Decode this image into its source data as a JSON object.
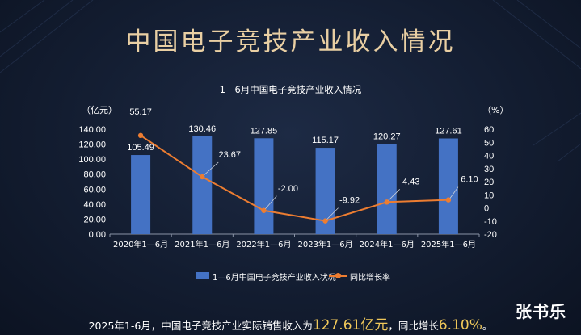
{
  "page": {
    "title": "中国电子竞技产业收入情况",
    "watermark": "张书乐"
  },
  "footer": {
    "prefix": "2025年1-6月，中国电子竞技产业实际销售收入为",
    "revenue": "127.61亿元",
    "middle": "，同比增长",
    "growth": "6.10%",
    "suffix": "。"
  },
  "chart_data": {
    "type": "bar",
    "title": "1—6月中国电子竞技产业收入情况",
    "y_left_label": "（亿元）",
    "y_right_label": "（%）",
    "categories": [
      "2020年1—6月",
      "2021年1—6月",
      "2022年1—6月",
      "2023年1—6月",
      "2024年1—6月",
      "2025年1—6月"
    ],
    "series": [
      {
        "name": "1—6月中国电子竞技产业收入状况",
        "type": "bar",
        "axis": "left",
        "color": "#4472c4",
        "values": [
          105.49,
          130.46,
          127.85,
          115.17,
          120.27,
          127.61
        ],
        "labels": [
          "105.49",
          "130.46",
          "127.85",
          "115.17",
          "120.27",
          "127.61"
        ]
      },
      {
        "name": "同比增长率",
        "type": "line",
        "axis": "right",
        "color": "#ed7d31",
        "values": [
          55.17,
          23.67,
          -2.0,
          -9.92,
          4.43,
          6.1
        ],
        "labels": [
          "55.17",
          "23.67",
          "-2.00",
          "-9.92",
          "4.43",
          "6.10"
        ]
      }
    ],
    "y_left_ticks": [
      "0.00",
      "20.00",
      "40.00",
      "60.00",
      "80.00",
      "100.00",
      "120.00",
      "140.00"
    ],
    "y_left_range": [
      0,
      140
    ],
    "y_right_ticks": [
      "-20",
      "-10",
      "0",
      "10",
      "20",
      "30",
      "40",
      "50",
      "60"
    ],
    "y_right_range": [
      -20,
      60
    ],
    "grid": false,
    "legend_position": "bottom"
  }
}
